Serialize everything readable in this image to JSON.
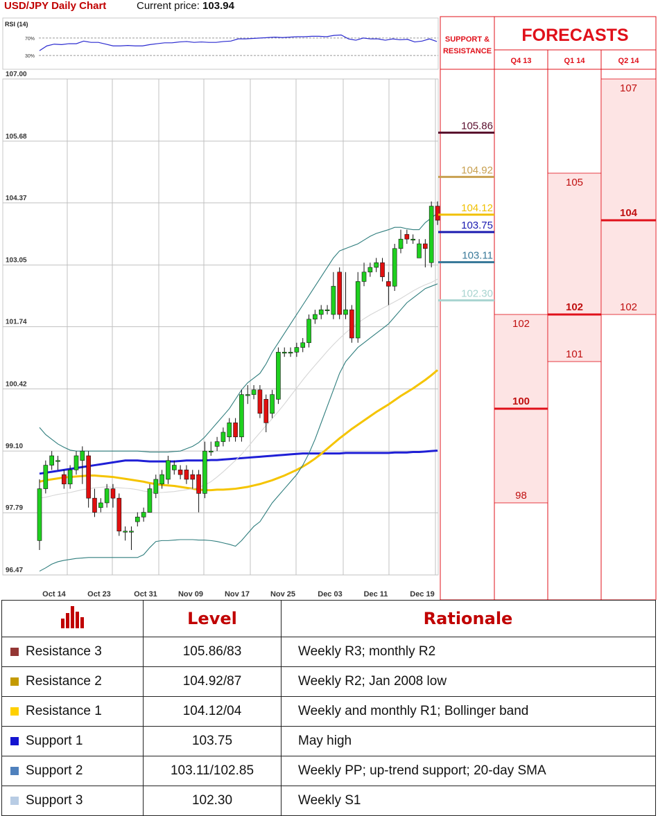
{
  "header": {
    "title": "USD/JPY Daily Chart",
    "price_label": "Current price:",
    "price_value": "103.94"
  },
  "rsi": {
    "label": "RSI (14)",
    "upper_label": "70%",
    "lower_label": "30%",
    "values": [
      41,
      52,
      56,
      55,
      57,
      57,
      63,
      60,
      60,
      56,
      52,
      52,
      53,
      52,
      52,
      55,
      57,
      59,
      59,
      61,
      62,
      60,
      61,
      60,
      60,
      62,
      63,
      68,
      68,
      69,
      70,
      71,
      72,
      71,
      72,
      73,
      73,
      74,
      74,
      73,
      76,
      77,
      68,
      65,
      70,
      68,
      68,
      65,
      68,
      66,
      67,
      61,
      63,
      68,
      62
    ]
  },
  "chart_data": {
    "type": "candlestick",
    "ylim": [
      96.47,
      107.0
    ],
    "y_ticks": [
      "107.00",
      "105.68",
      "104.37",
      "103.05",
      "101.74",
      "100.42",
      "99.10",
      "97.79",
      "96.47"
    ],
    "x_labels": [
      "Oct 14",
      "Oct 23",
      "Oct 31",
      "Nov 09",
      "Nov 17",
      "Nov 25",
      "Dec 03",
      "Dec 11",
      "Dec 19"
    ],
    "candles": [
      [
        97.2,
        98.3,
        97.0,
        98.5
      ],
      [
        98.3,
        98.8,
        98.2,
        98.9
      ],
      [
        98.8,
        99.0,
        98.7,
        99.1
      ],
      [
        98.9,
        98.9,
        98.7,
        99.0
      ],
      [
        98.6,
        98.4,
        98.3,
        98.7
      ],
      [
        98.4,
        98.7,
        98.3,
        98.8
      ],
      [
        98.7,
        99.0,
        98.6,
        99.1
      ],
      [
        98.9,
        99.1,
        98.4,
        99.2
      ],
      [
        99.0,
        98.1,
        97.9,
        99.1
      ],
      [
        98.1,
        97.8,
        97.7,
        98.3
      ],
      [
        97.9,
        98.0,
        97.8,
        98.1
      ],
      [
        98.0,
        98.3,
        97.9,
        98.4
      ],
      [
        98.3,
        98.1,
        97.9,
        98.4
      ],
      [
        98.1,
        97.4,
        97.3,
        98.2
      ],
      [
        97.4,
        97.4,
        97.2,
        97.5
      ],
      [
        97.4,
        97.4,
        97.0,
        97.5
      ],
      [
        97.6,
        97.7,
        97.5,
        97.8
      ],
      [
        97.7,
        97.8,
        97.6,
        97.9
      ],
      [
        97.8,
        98.3,
        97.8,
        98.4
      ],
      [
        98.2,
        98.5,
        98.1,
        98.6
      ],
      [
        98.4,
        98.6,
        98.3,
        98.7
      ],
      [
        98.5,
        98.9,
        98.4,
        99.0
      ],
      [
        98.7,
        98.8,
        98.6,
        98.9
      ],
      [
        98.7,
        98.6,
        98.5,
        98.8
      ],
      [
        98.7,
        98.5,
        98.4,
        98.8
      ],
      [
        98.6,
        98.5,
        98.3,
        98.7
      ],
      [
        98.6,
        98.2,
        97.8,
        98.7
      ],
      [
        98.2,
        99.1,
        98.1,
        99.3
      ],
      [
        99.1,
        99.1,
        99.0,
        99.3
      ],
      [
        99.2,
        99.3,
        99.1,
        99.4
      ],
      [
        99.3,
        99.5,
        99.2,
        99.6
      ],
      [
        99.4,
        99.7,
        99.3,
        99.8
      ],
      [
        99.7,
        99.4,
        99.3,
        99.8
      ],
      [
        99.4,
        100.3,
        99.3,
        100.4
      ],
      [
        100.3,
        100.3,
        100.1,
        100.5
      ],
      [
        100.3,
        100.4,
        100.2,
        100.5
      ],
      [
        100.4,
        99.9,
        99.8,
        100.5
      ],
      [
        100.2,
        99.7,
        99.5,
        100.3
      ],
      [
        99.9,
        100.3,
        99.8,
        100.4
      ],
      [
        100.2,
        101.2,
        100.1,
        101.3
      ],
      [
        101.2,
        101.2,
        101.1,
        101.3
      ],
      [
        101.2,
        101.2,
        101.1,
        101.3
      ],
      [
        101.2,
        101.3,
        101.1,
        101.4
      ],
      [
        101.3,
        101.4,
        101.2,
        101.5
      ],
      [
        101.4,
        101.9,
        101.3,
        102.0
      ],
      [
        101.9,
        102.0,
        101.8,
        102.1
      ],
      [
        102.0,
        102.1,
        101.9,
        102.2
      ],
      [
        102.1,
        102.1,
        102.0,
        102.2
      ],
      [
        102.0,
        102.6,
        101.9,
        102.9
      ],
      [
        102.9,
        102.0,
        101.9,
        103.0
      ],
      [
        102.0,
        102.1,
        101.9,
        102.9
      ],
      [
        102.1,
        101.5,
        101.4,
        102.2
      ],
      [
        101.5,
        102.7,
        101.4,
        102.9
      ],
      [
        102.7,
        102.9,
        102.6,
        103.1
      ],
      [
        102.9,
        103.0,
        102.8,
        103.1
      ],
      [
        103.0,
        103.1,
        102.9,
        103.2
      ],
      [
        103.1,
        102.8,
        102.7,
        103.2
      ],
      [
        102.7,
        102.6,
        102.2,
        102.9
      ],
      [
        102.6,
        103.4,
        102.5,
        103.5
      ],
      [
        103.4,
        103.6,
        103.3,
        103.8
      ],
      [
        103.7,
        103.6,
        103.5,
        103.8
      ],
      [
        103.6,
        103.6,
        103.5,
        103.7
      ],
      [
        103.2,
        103.5,
        103.2,
        103.6
      ],
      [
        103.5,
        103.4,
        103.0,
        103.6
      ],
      [
        103.1,
        104.3,
        103.0,
        104.4
      ],
      [
        104.3,
        104.0,
        103.9,
        104.4
      ]
    ],
    "series": [
      {
        "name": "",
        "color": "#1f1fd6",
        "values": [
          98.62,
          98.64,
          98.66,
          98.68,
          98.7,
          98.72,
          98.74,
          98.76,
          98.78,
          98.8,
          98.82,
          98.84,
          98.86,
          98.88,
          98.9,
          98.9,
          98.9,
          98.89,
          98.88,
          98.88,
          98.88,
          98.88,
          98.88,
          98.89,
          98.9,
          98.9,
          98.9,
          98.9,
          98.91,
          98.91,
          98.92,
          98.93,
          98.94,
          98.95,
          98.96,
          98.97,
          98.98,
          98.99,
          99.0,
          99.01,
          99.02,
          99.03,
          99.04,
          99.05,
          99.05,
          99.05,
          99.05,
          99.05,
          99.05,
          99.05,
          99.06,
          99.06,
          99.06,
          99.06,
          99.06,
          99.06,
          99.06,
          99.06,
          99.07,
          99.07,
          99.07,
          99.08,
          99.08,
          99.09,
          99.1,
          99.11
        ]
      },
      {
        "name": "",
        "color": "#f5c400",
        "values": [
          98.45,
          98.48,
          98.5,
          98.52,
          98.54,
          98.55,
          98.56,
          98.57,
          98.58,
          98.58,
          98.57,
          98.56,
          98.55,
          98.53,
          98.51,
          98.49,
          98.47,
          98.45,
          98.42,
          98.4,
          98.38,
          98.37,
          98.36,
          98.34,
          98.32,
          98.3,
          98.28,
          98.27,
          98.27,
          98.28,
          98.28,
          98.29,
          98.3,
          98.32,
          98.34,
          98.37,
          98.4,
          98.44,
          98.48,
          98.53,
          98.58,
          98.64,
          98.7,
          98.77,
          98.85,
          98.94,
          99.04,
          99.15,
          99.26,
          99.37,
          99.47,
          99.57,
          99.66,
          99.75,
          99.84,
          99.93,
          100.01,
          100.09,
          100.18,
          100.27,
          100.35,
          100.43,
          100.52,
          100.61,
          100.71,
          100.82
        ]
      },
      {
        "name": "",
        "color": "#d6d6d6",
        "values": [
          98.1,
          98.12,
          98.15,
          98.18,
          98.2,
          98.22,
          98.25,
          98.28,
          98.3,
          98.32,
          98.33,
          98.34,
          98.33,
          98.32,
          98.31,
          98.3,
          98.28,
          98.25,
          98.23,
          98.22,
          98.22,
          98.23,
          98.24,
          98.26,
          98.28,
          98.3,
          98.33,
          98.38,
          98.45,
          98.55,
          98.66,
          98.78,
          98.9,
          99.03,
          99.18,
          99.34,
          99.49,
          99.64,
          99.79,
          99.94,
          100.1,
          100.27,
          100.44,
          100.61,
          100.77,
          100.92,
          101.07,
          101.22,
          101.36,
          101.49,
          101.61,
          101.72,
          101.82,
          101.91,
          101.99,
          102.06,
          102.13,
          102.2,
          102.27,
          102.34,
          102.42,
          102.5,
          102.57,
          102.63,
          102.68,
          102.75
        ]
      },
      {
        "name": "",
        "color": "#2e7d7d",
        "values": [
          99.6,
          99.45,
          99.35,
          99.25,
          99.18,
          99.12,
          99.1,
          99.1,
          99.1,
          99.1,
          99.1,
          99.1,
          99.1,
          99.1,
          99.1,
          99.1,
          99.1,
          99.09,
          99.08,
          99.08,
          99.08,
          99.08,
          99.09,
          99.1,
          99.15,
          99.2,
          99.28,
          99.4,
          99.55,
          99.7,
          99.85,
          100.0,
          100.2,
          100.4,
          100.55,
          100.65,
          100.75,
          100.95,
          101.2,
          101.4,
          101.6,
          101.8,
          102.0,
          102.2,
          102.4,
          102.6,
          102.8,
          103.0,
          103.2,
          103.35,
          103.4,
          103.45,
          103.5,
          103.58,
          103.66,
          103.72,
          103.76,
          103.8,
          103.85,
          103.85,
          103.82,
          103.8,
          103.8,
          103.95,
          104.05,
          104.15
        ]
      },
      {
        "name": "",
        "color": "#2e7d7d",
        "values": [
          96.55,
          96.62,
          96.7,
          96.75,
          96.78,
          96.8,
          96.82,
          96.83,
          96.84,
          96.84,
          96.84,
          96.84,
          96.84,
          96.84,
          96.84,
          96.84,
          96.84,
          96.9,
          97.05,
          97.18,
          97.2,
          97.2,
          97.21,
          97.22,
          97.22,
          97.22,
          97.21,
          97.21,
          97.2,
          97.18,
          97.15,
          97.12,
          97.08,
          97.2,
          97.35,
          97.5,
          97.6,
          97.8,
          98.0,
          98.15,
          98.3,
          98.45,
          98.6,
          98.8,
          99.05,
          99.35,
          99.7,
          100.05,
          100.4,
          100.75,
          101.0,
          101.15,
          101.3,
          101.4,
          101.5,
          101.6,
          101.7,
          101.8,
          101.95,
          102.1,
          102.25,
          102.35,
          102.45,
          102.55,
          102.6,
          102.65
        ]
      }
    ],
    "support_resistance": [
      {
        "label": "105.86",
        "value": 105.86,
        "color": "#5a0f2e"
      },
      {
        "label": "104.92",
        "value": 104.92,
        "color": "#c8a050"
      },
      {
        "label": "104.12",
        "value": 104.12,
        "color": "#f0c000"
      },
      {
        "label": "103.75",
        "value": 103.75,
        "color": "#1a1ab0"
      },
      {
        "label": "103.11",
        "value": 103.11,
        "color": "#3a7a9a"
      },
      {
        "label": "102.30",
        "value": 102.3,
        "color": "#a8d4d0"
      }
    ],
    "forecasts": {
      "title": "FORECASTS",
      "sr_title_1": "SUPPORT &",
      "sr_title_2": "RESISTANCE",
      "columns": [
        {
          "label": "Q4 13",
          "high": 102,
          "mid": 100,
          "low": 98,
          "high_label": "102",
          "mid_label": "100",
          "low_label": "98"
        },
        {
          "label": "Q1 14",
          "high": 105,
          "mid": 102,
          "low": 101,
          "high_label": "105",
          "mid_label": "102",
          "low_label": "101"
        },
        {
          "label": "Q2 14",
          "high": 107,
          "mid": 104,
          "low": 102,
          "high_label": "107",
          "mid_label": "104",
          "low_label": "102"
        }
      ]
    }
  },
  "table": {
    "headers": {
      "level": "Level",
      "rationale": "Rationale"
    },
    "rows": [
      {
        "name": "Resistance 3",
        "color": "#943634",
        "level": "105.86/83",
        "rationale": "Weekly R3; monthly R2"
      },
      {
        "name": "Resistance 2",
        "color": "#c49a00",
        "level": "104.92/87",
        "rationale": "Weekly R2; Jan 2008 low"
      },
      {
        "name": "Resistance 1",
        "color": "#ffd000",
        "level": "104.12/04",
        "rationale": "Weekly and monthly R1; Bollinger band"
      },
      {
        "name": "Support 1",
        "color": "#1414d0",
        "level": "103.75",
        "rationale": "May high"
      },
      {
        "name": "Support 2",
        "color": "#4f81bd",
        "level": "103.11/102.85",
        "rationale": "Weekly PP; up-trend support; 20-day SMA"
      },
      {
        "name": "Support 3",
        "color": "#b8cce4",
        "level": "102.30",
        "rationale": "Weekly S1"
      }
    ]
  }
}
